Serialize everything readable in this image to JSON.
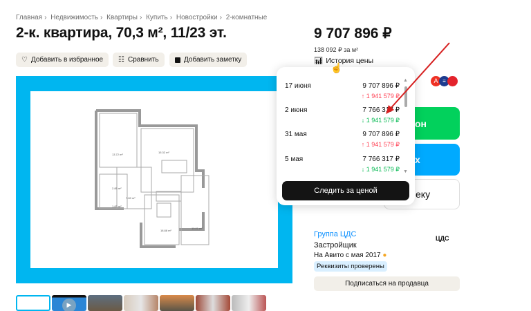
{
  "breadcrumbs": [
    "Главная",
    "Недвижимость",
    "Квартиры",
    "Купить",
    "Новостройки",
    "2-комнатные"
  ],
  "title": "2-к. квартира, 70,3 м², 11/23 эт.",
  "actions": {
    "favorite": "Добавить в избранное",
    "compare": "Сравнить",
    "note": "Добавить заметку"
  },
  "price": {
    "value": "9 707 896 ₽",
    "per_meter": "138 092 ₽ за м²",
    "history_link": "История цены"
  },
  "price_history": {
    "rows": [
      {
        "date": "17 июня",
        "price": "9 707 896 ₽",
        "change": "↑ 1 941 579 ₽",
        "direction": "up"
      },
      {
        "date": "2 июня",
        "price": "7 766 317 ₽",
        "change": "↓ 1 941 579 ₽",
        "direction": "down"
      },
      {
        "date": "31 мая",
        "price": "9 707 896 ₽",
        "change": "↑ 1 941 579 ₽",
        "direction": "up"
      },
      {
        "date": "5 мая",
        "price": "7 766 317 ₽",
        "change": "↓ 1 941 579 ₽",
        "direction": "down"
      }
    ],
    "follow_button": "Следить за ценой"
  },
  "side_buttons": {
    "green_fragment": "он",
    "blue_fragment": "х",
    "white_fragment": "еку"
  },
  "seller": {
    "name": "Группа ЦДС",
    "type": "Застройщик",
    "since": "На Авито с мая 2017",
    "badge": "Реквизиты проверены",
    "subscribe": "Подписаться на продавца",
    "logo": "ЦДС"
  },
  "colors": {
    "accent_blue": "#00b6f0",
    "green": "#02d15c",
    "link": "#0a8fff",
    "up": "#ff4053",
    "down": "#00b84f"
  },
  "thumbnails_count": 7
}
